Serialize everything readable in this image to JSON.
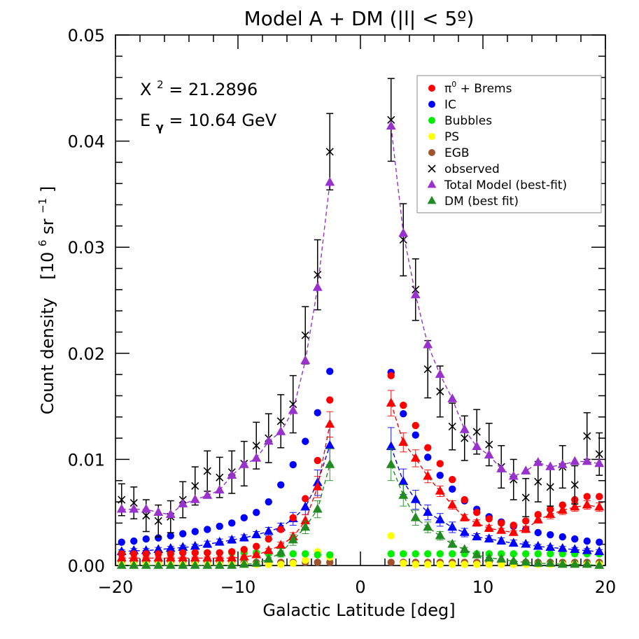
{
  "chart_data": {
    "type": "scatter",
    "title": "Model A + DM (|l| < 5º)",
    "xlabel": "Galactic Latitude [deg]",
    "ylabel_text": "Count density",
    "ylabel_unit_base": "[10",
    "ylabel_unit_exp": "6",
    "ylabel_unit_mid": " sr",
    "ylabel_unit_exp2": "−1",
    "ylabel_unit_end": "]",
    "xlim": [
      -20,
      20
    ],
    "ylim": [
      0,
      0.05
    ],
    "x_ticks": [
      -20,
      -10,
      0,
      10,
      20
    ],
    "x_tick_labels": [
      "−20",
      "−10",
      "0",
      "10",
      "20"
    ],
    "y_ticks": [
      0,
      0.01,
      0.02,
      0.03,
      0.04,
      0.05
    ],
    "y_tick_labels": [
      "0.00",
      "0.01",
      "0.02",
      "0.03",
      "0.04",
      "0.05"
    ],
    "annotations": {
      "chi_base": "X",
      "chi_exp": "2",
      "chi_value": " = 21.2896",
      "energy_base": "E",
      "energy_sub": "γ",
      "energy_value": " = 10.64 GeV"
    },
    "legend_position": "top-right",
    "x": [
      -19.5,
      -18.5,
      -17.5,
      -16.5,
      -15.5,
      -14.5,
      -13.5,
      -12.5,
      -11.5,
      -10.5,
      -9.5,
      -8.5,
      -7.5,
      -6.5,
      -5.5,
      -4.5,
      -3.5,
      -2.5,
      2.5,
      3.5,
      4.5,
      5.5,
      6.5,
      7.5,
      8.5,
      9.5,
      10.5,
      11.5,
      12.5,
      13.5,
      14.5,
      15.5,
      16.5,
      17.5,
      18.5,
      19.5
    ],
    "series": [
      {
        "name": "π",
        "name_sup": "0",
        "name_rest": " + Brems",
        "marker": "circle",
        "color": "#ff0000",
        "values": [
          0.0011,
          0.0011,
          0.0011,
          0.0011,
          0.0011,
          0.0012,
          0.0012,
          0.0012,
          0.0012,
          0.0013,
          0.0015,
          0.0018,
          0.0025,
          0.0034,
          0.0045,
          0.0063,
          0.0099,
          0.0156,
          0.0179,
          0.0151,
          0.0132,
          0.0111,
          0.0096,
          0.0081,
          0.0062,
          0.005,
          0.0044,
          0.004,
          0.0038,
          0.0042,
          0.0048,
          0.0053,
          0.0057,
          0.0062,
          0.0065,
          0.0065
        ]
      },
      {
        "name": "IC",
        "marker": "circle",
        "color": "#0000ff",
        "values": [
          0.0022,
          0.0023,
          0.0025,
          0.0026,
          0.0028,
          0.003,
          0.0032,
          0.0034,
          0.0037,
          0.004,
          0.0045,
          0.005,
          0.006,
          0.0076,
          0.0095,
          0.0117,
          0.0144,
          0.0183,
          0.0182,
          0.0143,
          0.0123,
          0.0102,
          0.0085,
          0.0072,
          0.0061,
          0.0053,
          0.0046,
          0.0041,
          0.0037,
          0.0034,
          0.0031,
          0.0029,
          0.0027,
          0.0025,
          0.0023,
          0.0022
        ]
      },
      {
        "name": "Bubbles",
        "marker": "circle",
        "color": "#00ee00",
        "values": [
          0.0012,
          0.0012,
          0.0012,
          0.0012,
          0.0012,
          0.0012,
          0.0012,
          0.0012,
          0.0012,
          0.0012,
          0.0012,
          0.0012,
          0.0011,
          0.0011,
          0.0011,
          0.0011,
          0.001,
          0.001,
          0.0011,
          0.0011,
          0.0011,
          0.0011,
          0.0011,
          0.0011,
          0.0011,
          0.0011,
          0.0011,
          0.0011,
          0.0011,
          0.0011,
          0.0011,
          0.0011,
          0.0011,
          0.0011,
          0.0011,
          0.0011
        ]
      },
      {
        "name": "PS",
        "marker": "circle",
        "color": "#ffff00",
        "values": [
          0.0001,
          0.0001,
          0.0001,
          0.0001,
          0.0001,
          0.0001,
          0.0001,
          0.0001,
          0.0001,
          0.0001,
          0.0001,
          0.0001,
          0.0001,
          0.0001,
          0.0002,
          0.0005,
          0.0013,
          0.0008,
          0.0028,
          0.0002,
          0.0001,
          0.0001,
          0.0001,
          0.0001,
          0.0001,
          0.0001,
          0.0001,
          0.0001,
          0.0001,
          0.0001,
          0.0001,
          0.0001,
          0.0001,
          0.0001,
          0.0001,
          0.0001
        ]
      },
      {
        "name": "EGB",
        "marker": "circle",
        "color": "#a0522d",
        "values": [
          0.0003,
          0.0003,
          0.0003,
          0.0003,
          0.0003,
          0.0003,
          0.0003,
          0.0003,
          0.0003,
          0.0003,
          0.0003,
          0.0003,
          0.0003,
          0.0003,
          0.0003,
          0.0003,
          0.0003,
          0.0003,
          0.0003,
          0.0003,
          0.0003,
          0.0003,
          0.0003,
          0.0003,
          0.0003,
          0.0003,
          0.0003,
          0.0003,
          0.0003,
          0.0003,
          0.0003,
          0.0003,
          0.0003,
          0.0003,
          0.0003,
          0.0003
        ]
      },
      {
        "name": "observed",
        "marker": "cross",
        "color": "#000000",
        "values": [
          0.0062,
          0.0059,
          0.0047,
          0.0042,
          0.0046,
          0.0062,
          0.0075,
          0.0089,
          0.0083,
          0.0088,
          0.0096,
          0.0113,
          0.012,
          0.0136,
          0.0152,
          0.0217,
          0.0274,
          0.039,
          0.042,
          0.0307,
          0.026,
          0.0185,
          0.0164,
          0.0131,
          0.012,
          0.0126,
          0.0114,
          0.0093,
          0.0081,
          0.0064,
          0.0079,
          0.0074,
          0.0093,
          0.0076,
          0.0122,
          0.0105
        ],
        "errors": [
          0.0015,
          0.0015,
          0.0015,
          0.0015,
          0.0015,
          0.0017,
          0.0018,
          0.0019,
          0.0019,
          0.002,
          0.0021,
          0.0022,
          0.0023,
          0.0025,
          0.0027,
          0.0027,
          0.0033,
          0.0036,
          0.0039,
          0.0034,
          0.0029,
          0.0027,
          0.0024,
          0.0022,
          0.0021,
          0.0021,
          0.002,
          0.002,
          0.0019,
          0.0018,
          0.0019,
          0.0018,
          0.002,
          0.0018,
          0.0022,
          0.002
        ]
      },
      {
        "name": "Total Model (best-fit)",
        "marker": "triangle",
        "color": "#9932cc",
        "line": true,
        "values": [
          0.0053,
          0.0053,
          0.0053,
          0.005,
          0.0048,
          0.0058,
          0.0062,
          0.0066,
          0.0071,
          0.0085,
          0.0095,
          0.0101,
          0.0117,
          0.0126,
          0.0146,
          0.0193,
          0.0262,
          0.0361,
          0.0414,
          0.0313,
          0.0255,
          0.0208,
          0.018,
          0.0157,
          0.0128,
          0.0112,
          0.0104,
          0.0091,
          0.0084,
          0.0089,
          0.0097,
          0.0093,
          0.0095,
          0.0098,
          0.0098,
          0.0096
        ]
      },
      {
        "name": "DM (best fit)",
        "marker": "triangle",
        "color": "#228b22",
        "line": true,
        "values": [
          0.0,
          0.0,
          0.0,
          0.0,
          0.0,
          0.0,
          0.0,
          0.0,
          0.0,
          0.0,
          0.0001,
          0.0002,
          0.0006,
          0.0012,
          0.0024,
          0.0036,
          0.0053,
          0.0095,
          0.0095,
          0.0066,
          0.0045,
          0.0036,
          0.0028,
          0.002,
          0.0015,
          0.001,
          0.0007,
          0.0006,
          0.0004,
          0.0003,
          0.0002,
          0.0002,
          0.0001,
          0.0001,
          0.0001,
          0.0
        ],
        "errors": [
          0,
          0,
          0,
          0,
          0,
          0,
          0,
          0,
          0,
          0,
          0,
          0,
          0,
          0.0004,
          0.0005,
          0.0006,
          0.0008,
          0.0015,
          0.0015,
          0.001,
          0.0007,
          0.0005,
          0.0004,
          0.0003,
          0.0002,
          0,
          0,
          0,
          0,
          0,
          0,
          0,
          0,
          0,
          0,
          0
        ]
      },
      {
        "name": "ICfit",
        "marker": "triangle",
        "color": "#0000ff",
        "line": true,
        "in_legend": false,
        "values": [
          0.0013,
          0.0014,
          0.0014,
          0.0015,
          0.0016,
          0.0017,
          0.0018,
          0.002,
          0.0022,
          0.0024,
          0.0026,
          0.0029,
          0.0032,
          0.0036,
          0.0044,
          0.0055,
          0.0078,
          0.0113,
          0.0112,
          0.0079,
          0.0062,
          0.005,
          0.0043,
          0.0036,
          0.0031,
          0.0027,
          0.0025,
          0.0023,
          0.0021,
          0.002,
          0.0018,
          0.0017,
          0.0016,
          0.0015,
          0.0014,
          0.0013
        ],
        "errors": [
          0.0002,
          0.0002,
          0.0002,
          0.0002,
          0.0002,
          0.0002,
          0.0002,
          0.0003,
          0.0003,
          0.0003,
          0.0003,
          0.0003,
          0.0004,
          0.0004,
          0.0006,
          0.0007,
          0.0012,
          0.0018,
          0.0018,
          0.0012,
          0.0009,
          0.0007,
          0.0006,
          0.0005,
          0.0004,
          0.0003,
          0.0003,
          0.0003,
          0.0003,
          0.0002,
          0.0002,
          0.0002,
          0.0002,
          0.0002,
          0.0002,
          0.0002
        ]
      },
      {
        "name": "PiFit",
        "marker": "triangle",
        "color": "#ff0000",
        "line": true,
        "in_legend": false,
        "values": [
          0.0007,
          0.0007,
          0.0007,
          0.0007,
          0.0007,
          0.0007,
          0.0007,
          0.0007,
          0.0007,
          0.0007,
          0.0008,
          0.001,
          0.0014,
          0.0019,
          0.0027,
          0.0042,
          0.0074,
          0.0133,
          0.0153,
          0.0116,
          0.0101,
          0.0084,
          0.007,
          0.0057,
          0.0045,
          0.004,
          0.0035,
          0.0033,
          0.0031,
          0.0034,
          0.0043,
          0.0048,
          0.0052,
          0.0055,
          0.0057,
          0.0055
        ],
        "errors": [
          0.0001,
          0.0001,
          0.0001,
          0.0001,
          0.0001,
          0.0001,
          0.0001,
          0.0001,
          0.0001,
          0.0001,
          0.0001,
          0.0001,
          0.0002,
          0.0003,
          0.0004,
          0.0006,
          0.001,
          0.0012,
          0.0012,
          0.0009,
          0.0008,
          0.0006,
          0.0005,
          0.0004,
          0.0003,
          0.0003,
          0.0003,
          0.0002,
          0.0002,
          0.0003,
          0.0003,
          0.0004,
          0.0004,
          0.0004,
          0.0004,
          0.0004
        ]
      }
    ]
  }
}
